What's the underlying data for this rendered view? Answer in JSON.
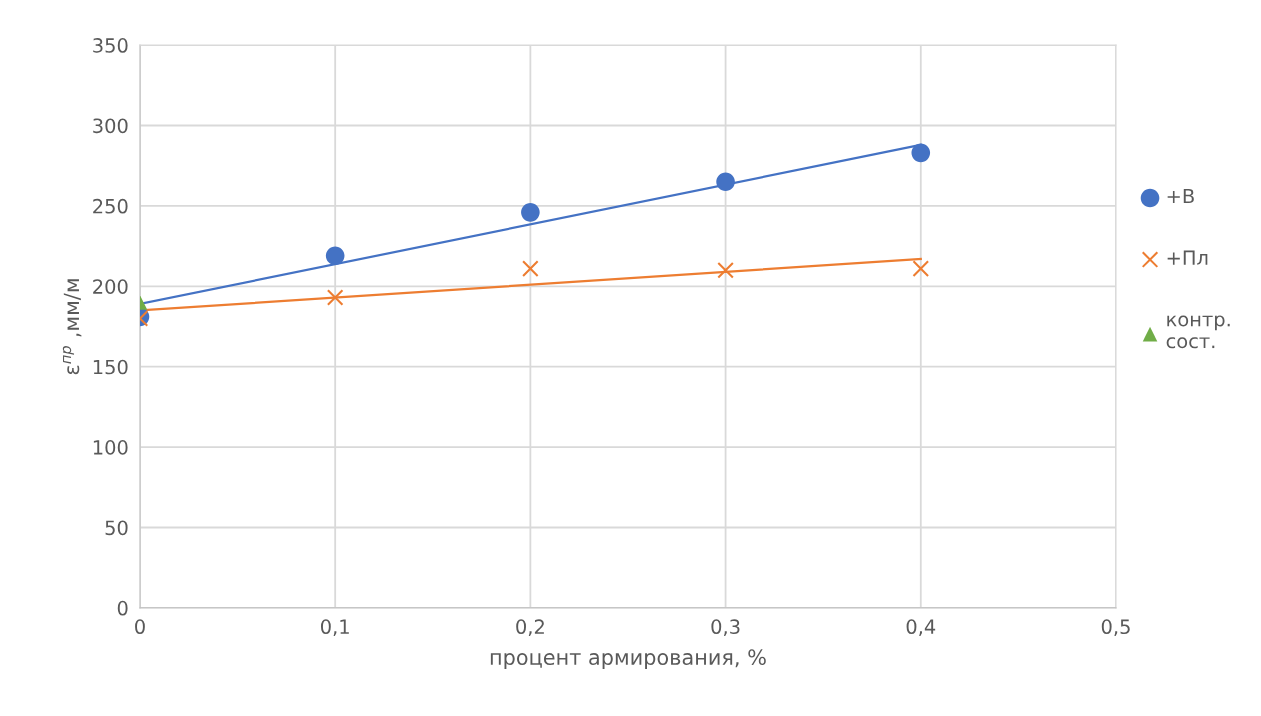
{
  "chart_data": {
    "type": "scatter",
    "xlabel": "процент армирования, %",
    "ylabel": "ε$^{пр}$ ,мм/м",
    "xlim": [
      0,
      0.5
    ],
    "xticks": [
      {
        "value": 0,
        "label": "0"
      },
      {
        "value": 0.1,
        "label": "0,1"
      },
      {
        "value": 0.2,
        "label": "0,2"
      },
      {
        "value": 0.3,
        "label": "0,3"
      },
      {
        "value": 0.4,
        "label": "0,4"
      },
      {
        "value": 0.5,
        "label": "0,5"
      }
    ],
    "ylim": [
      0,
      350
    ],
    "yticks": [
      0,
      50,
      100,
      150,
      200,
      250,
      300,
      350
    ],
    "grid": true,
    "legend": "right",
    "series": [
      {
        "name": "+В",
        "color": "#4472c4",
        "marker": "circle",
        "x": [
          0,
          0.1,
          0.2,
          0.3,
          0.4
        ],
        "values": [
          181,
          219,
          246,
          265,
          283
        ]
      },
      {
        "name": "+Пл",
        "color": "#ed7d31",
        "marker": "cross",
        "x": [
          0,
          0.1,
          0.2,
          0.3,
          0.4
        ],
        "values": [
          180,
          193,
          211,
          210,
          211
        ]
      },
      {
        "name": "контр.\nсост.",
        "color": "#70ad47",
        "marker": "triangle",
        "x": [
          0
        ],
        "values": [
          190
        ]
      },
      {
        "type": "line",
        "color": "#4472c4",
        "x": [
          0,
          0.4
        ],
        "values": [
          189,
          288
        ]
      },
      {
        "type": "line",
        "color": "#ed7d31",
        "x": [
          0,
          0.4
        ],
        "values": [
          185,
          217
        ]
      }
    ]
  }
}
